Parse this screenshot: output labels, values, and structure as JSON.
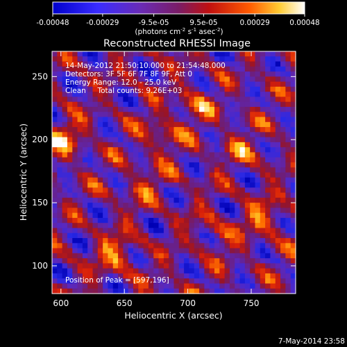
{
  "colorbar": {
    "ticks": [
      "-0.00048",
      "-0.00029",
      "-9.5e-05",
      "9.5e-05",
      "0.00029",
      "0.00048"
    ],
    "tick_values": [
      -0.00048,
      -0.00029,
      -9.5e-05,
      9.5e-05,
      0.00029,
      0.00048
    ],
    "range": [
      -0.00048,
      0.00048
    ],
    "units_prefix": "(photons cm",
    "units_sup1": "-2",
    "units_mid": " s",
    "units_sup2": "-1",
    "units_mid2": " asec",
    "units_sup3": "-2",
    "units_suffix": ")"
  },
  "title": "Reconstructed RHESSI Image",
  "info": {
    "line1": "14-May-2012 21:50:10.000 to 21:54:48.000",
    "line2": "Detectors: 3F 5F 6F 7F 8F 9F, Att 0",
    "line3": "Energy Range: 12.0 - 25.0 keV",
    "line4": "Clean     Total counts: 9.26E+03",
    "peak": "Position of Peak = [597,196]"
  },
  "footer_date": "7-May-2014 23:58",
  "chart_data": {
    "type": "heatmap",
    "title": "Reconstructed RHESSI Image",
    "xlabel": "Heliocentric X (arcsec)",
    "ylabel": "Heliocentric Y (arcsec)",
    "xlim": [
      593,
      785
    ],
    "ylim": [
      78,
      270
    ],
    "xticks": [
      600,
      650,
      700,
      750
    ],
    "yticks": [
      100,
      150,
      200,
      250
    ],
    "peak_position": [
      597,
      196
    ],
    "colormap": [
      "#000000",
      "#0a0aff",
      "#5b2bbf",
      "#7a1c66",
      "#b01818",
      "#ff4a00",
      "#ffb300",
      "#ffffff"
    ],
    "grid": false
  }
}
